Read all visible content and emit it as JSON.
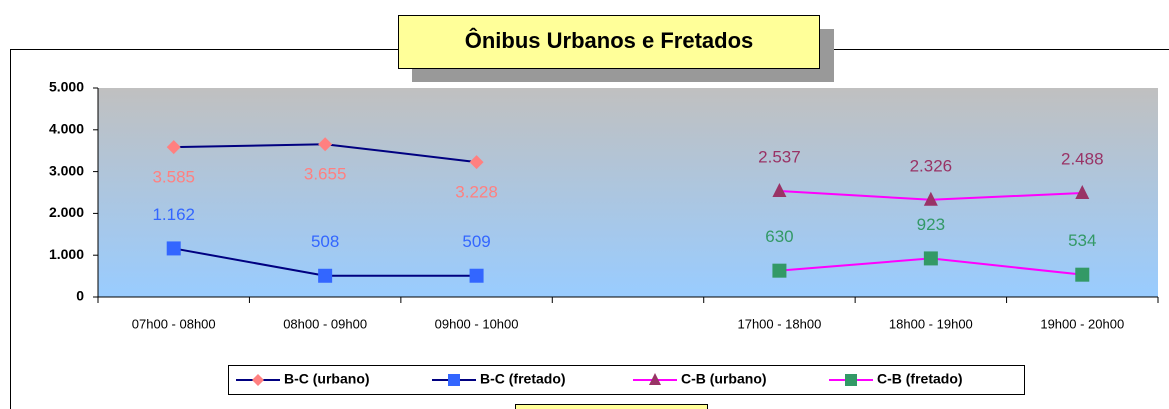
{
  "chart_data": {
    "type": "line",
    "title": "Ônibus Urbanos e Fretados",
    "categories": [
      "07h00 - 08h00",
      "08h00 - 09h00",
      "09h00 - 10h00",
      null,
      "17h00 - 18h00",
      "18h00 - 19h00",
      "19h00 - 20h00"
    ],
    "series": [
      {
        "name": "B-C (urbano)",
        "color": "#000080",
        "marker_color": "#ff8080",
        "marker": "diamond",
        "label_position": "below",
        "values": [
          3585,
          3655,
          3228,
          null,
          null,
          null,
          null
        ],
        "value_labels": [
          "3.585",
          "3.655",
          "3.228",
          null,
          null,
          null,
          null
        ]
      },
      {
        "name": "B-C (fretado)",
        "color": "#000080",
        "marker_color": "#3366ff",
        "marker": "square",
        "label_position": "above",
        "values": [
          1162,
          508,
          509,
          null,
          null,
          null,
          null
        ],
        "value_labels": [
          "1.162",
          "508",
          "509",
          null,
          null,
          null,
          null
        ]
      },
      {
        "name": "C-B (urbano)",
        "color": "#ff00ff",
        "marker_color": "#993366",
        "marker": "triangle",
        "label_position": "above",
        "values": [
          null,
          null,
          null,
          null,
          2537,
          2326,
          2488
        ],
        "value_labels": [
          null,
          null,
          null,
          null,
          "2.537",
          "2.326",
          "2.488"
        ]
      },
      {
        "name": "C-B (fretado)",
        "color": "#ff00ff",
        "marker_color": "#339966",
        "marker": "square",
        "label_position": "above",
        "values": [
          null,
          null,
          null,
          null,
          630,
          923,
          534
        ],
        "value_labels": [
          null,
          null,
          null,
          null,
          "630",
          "923",
          "534"
        ]
      }
    ],
    "ylim": [
      0,
      5000
    ],
    "yticks": [
      0,
      {
        "value": 1000,
        "label": "1.000"
      },
      {
        "value": 2000,
        "label": "2.000"
      },
      {
        "value": 3000,
        "label": "3.000"
      },
      {
        "value": 4000,
        "label": "4.000"
      },
      {
        "value": 5000,
        "label": "5.000"
      }
    ],
    "legend": "bottom"
  }
}
